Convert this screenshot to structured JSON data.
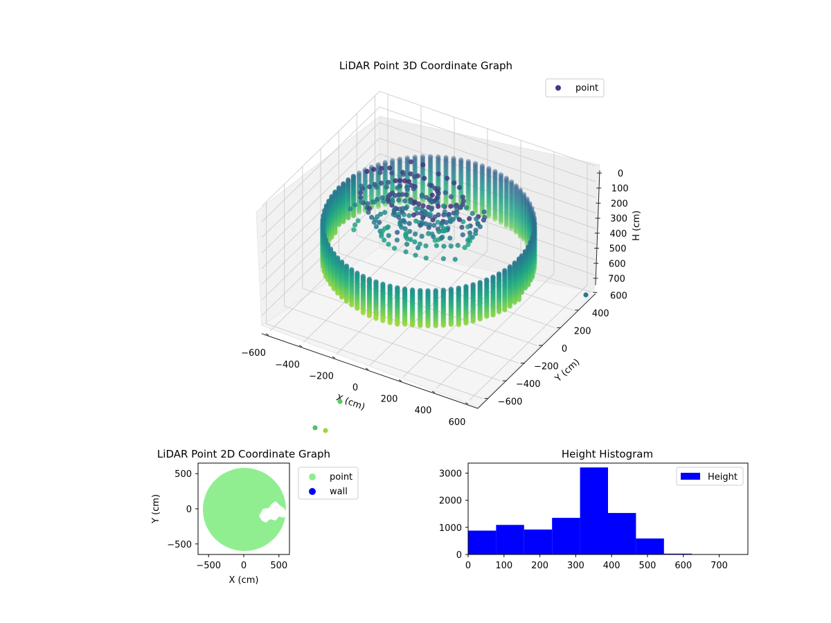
{
  "colors": {
    "point_3d_legend": "#443983",
    "point_2d": "#90ee90",
    "wall": "#0000ff",
    "hist_bar": "#0000ff",
    "pane": "#f2f2f2",
    "grid": "#cccccc"
  },
  "chart_data": [
    {
      "type": "scatter3d",
      "title": "LiDAR Point 3D Coordinate Graph",
      "xlabel": "X (cm)",
      "ylabel": "Y (cm)",
      "zlabel": "H (cm)",
      "xticks": [
        "−600",
        "−400",
        "−200",
        "0",
        "200",
        "400",
        "600"
      ],
      "yticks": [
        "−600",
        "−400",
        "−200",
        "0",
        "200",
        "400",
        "600"
      ],
      "zticks": [
        "0",
        "100",
        "200",
        "300",
        "400",
        "500",
        "600",
        "700"
      ],
      "xlim": [
        -650,
        650
      ],
      "ylim": [
        -650,
        650
      ],
      "zlim": [
        0,
        780
      ],
      "z_inverted": true,
      "colormap": "viridis",
      "legend": {
        "label": "point",
        "position": "upper right"
      },
      "description": "Ring-shaped point cloud: cylindrical wall of radius ~550 cm with points spanning height 0 to ~550 cm, plus an inner cluster of structure points."
    },
    {
      "type": "scatter",
      "title": "LiDAR Point 2D Coordinate Graph",
      "xlabel": "X (cm)",
      "ylabel": "Y (cm)",
      "xticks": [
        "−500",
        "0",
        "500"
      ],
      "yticks": [
        "500",
        "0",
        "−500"
      ],
      "xlim": [
        -650,
        650
      ],
      "ylim": [
        -650,
        650
      ],
      "series": [
        {
          "name": "point",
          "color": "#90ee90",
          "description": "filled disc of radius ~600 cm with a small gap near (320, 0)"
        },
        {
          "name": "wall",
          "color": "#0000ff"
        }
      ],
      "legend": {
        "position": "outside right"
      }
    },
    {
      "type": "bar",
      "title": "Height Histogram",
      "series": [
        {
          "name": "Height",
          "bin_edges": [
            0,
            78,
            156,
            234,
            312,
            390,
            468,
            546,
            624,
            702,
            780
          ],
          "values": [
            880,
            1090,
            920,
            1350,
            3210,
            1530,
            590,
            30,
            10,
            5
          ]
        }
      ],
      "xticks": [
        "0",
        "100",
        "200",
        "300",
        "400",
        "500",
        "600",
        "700"
      ],
      "yticks": [
        "0",
        "1000",
        "2000",
        "3000"
      ],
      "xlim": [
        0,
        780
      ],
      "ylim": [
        0,
        3370
      ],
      "legend": {
        "position": "upper right"
      }
    }
  ]
}
